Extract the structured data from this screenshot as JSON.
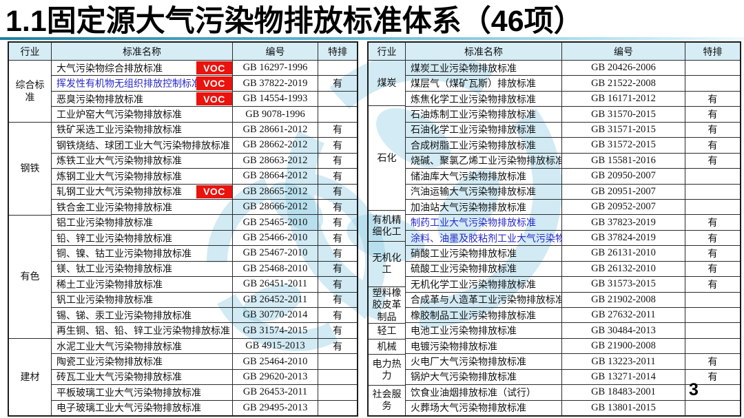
{
  "title": "1.1固定源大气污染物排放标准体系（46项）",
  "page_number": "3",
  "voc_label": "VOC",
  "columns": [
    "行业",
    "标准名称",
    "编号",
    "特排"
  ],
  "colors": {
    "voc_red": "#ea130d",
    "header_bg": "#d7edf6",
    "highlight_blue_text": "#2727c8",
    "watermark_blue": "#93cfe6",
    "title_underline_teal": "#1f7f9e"
  },
  "tables": [
    {
      "side": "left",
      "groups": [
        {
          "industry": "综合标\n准",
          "rows": [
            {
              "name": "大气污染物综合排放标准",
              "voc": true,
              "code": "GB 16297-1996",
              "special": ""
            },
            {
              "name": "挥发性有机物无组织排放控制标准",
              "voc": true,
              "blue": true,
              "code": "GB 37822-2019",
              "special": "有"
            },
            {
              "name": "恶臭污染物排放标准",
              "voc": true,
              "code": "GB 14554-1993",
              "special": ""
            },
            {
              "name": "工业炉窑大气污染物排放标准",
              "code": "GB 9078-1996",
              "special": ""
            }
          ]
        },
        {
          "industry": "钢铁",
          "rows": [
            {
              "name": "铁矿采选工业污染物排放标准",
              "code": "GB 28661-2012",
              "special": "有"
            },
            {
              "name": "钢铁烧结、球团工业大气污染物排放标准",
              "code": "GB 28662-2012",
              "special": "有"
            },
            {
              "name": "炼铁工业大气污染物排放标准",
              "code": "GB 28663-2012",
              "special": "有"
            },
            {
              "name": "炼钢工业大气污染物排放标准",
              "code": "GB 28664-2012",
              "special": "有"
            },
            {
              "name": "轧钢工业大气污染物排放标准",
              "voc": true,
              "code": "GB 28665-2012",
              "special": "有"
            },
            {
              "name": "铁合金工业污染物排放标准",
              "code": "GB 28666-2012",
              "special": "有"
            }
          ]
        },
        {
          "industry": "有色",
          "rows": [
            {
              "name": "铝工业污染物排放标准",
              "code": "GB 25465-2010",
              "special": "有"
            },
            {
              "name": "铅、锌工业污染物排放标准",
              "code": "GB 25466-2010",
              "special": "有"
            },
            {
              "name": "铜、镍、钴工业污染物排放标准",
              "code": "GB 25467-2010",
              "special": "有"
            },
            {
              "name": "镁、钛工业污染物排放标准",
              "code": "GB 25468-2010",
              "special": "有"
            },
            {
              "name": "稀土工业污染物排放标准",
              "code": "GB 26451-2011",
              "special": "有"
            },
            {
              "name": "钒工业污染物排放标准",
              "code": "GB 26452-2011",
              "special": "有"
            },
            {
              "name": "锡、锑、汞工业污染物排放标准",
              "code": "GB 30770-2014",
              "special": "有"
            },
            {
              "name": "再生铜、铝、铅、锌工业污染物排放标准",
              "code": "GB 31574-2015",
              "special": "有"
            }
          ]
        },
        {
          "industry": "建材",
          "rows": [
            {
              "name": "水泥工业大气污染物排放标准",
              "code": "GB 4915-2013",
              "special": "有"
            },
            {
              "name": "陶瓷工业污染物排放标准",
              "code": "GB 25464-2010",
              "special": ""
            },
            {
              "name": "砖瓦工业大气污染物排放标准",
              "code": "GB 29620-2013",
              "special": ""
            },
            {
              "name": "平板玻璃工业大气污染物排放标准",
              "code": "GB 26453-2011",
              "special": ""
            },
            {
              "name": "电子玻璃工业大气污染物排放标准",
              "code": "GB 29495-2013",
              "special": ""
            }
          ]
        }
      ]
    },
    {
      "side": "right",
      "groups": [
        {
          "industry": "煤炭",
          "rows": [
            {
              "name": "煤炭工业污染物排放标准",
              "code": "GB 20426-2006",
              "special": ""
            },
            {
              "name": "煤层气（煤矿瓦斯）排放标准",
              "code": "GB 21522-2008",
              "special": ""
            },
            {
              "name": "炼焦化学工业污染物排放标准",
              "voc": true,
              "code": "GB 16171-2012",
              "special": "有"
            }
          ]
        },
        {
          "industry": "石化",
          "rows": [
            {
              "name": "石油炼制工业污染物排放标准",
              "voc": true,
              "code": "GB 31570-2015",
              "special": "有"
            },
            {
              "name": "石油化学工业污染物排放标准",
              "voc": true,
              "code": "GB 31571-2015",
              "special": "有"
            },
            {
              "name": "合成树脂工业污染物排放标准",
              "voc": true,
              "code": "GB 31572-2015",
              "special": "有"
            },
            {
              "name": "烧碱、聚氯乙烯工业污染物排放标准",
              "voc": true,
              "code": "GB 15581-2016",
              "special": "有"
            },
            {
              "name": "储油库大气污染物排放标准",
              "voc": true,
              "code": "GB 20950-2007",
              "special": ""
            },
            {
              "name": "汽油运输大气污染物排放标准",
              "voc": true,
              "code": "GB 20951-2007",
              "special": ""
            },
            {
              "name": "加油站大气污染物排放标准",
              "voc": true,
              "code": "GB 20952-2007",
              "special": ""
            }
          ]
        },
        {
          "industry": "有机精\n细化工",
          "rows": [
            {
              "name": "制药工业大气污染物排放标准",
              "voc": true,
              "blue": true,
              "code": "GB 37823-2019",
              "special": "有"
            },
            {
              "name": "涂料、油墨及胶粘剂工业大气污染物排放",
              "voc": true,
              "blue": true,
              "code": "GB 37824-2019",
              "special": "有"
            }
          ]
        },
        {
          "industry": "无机化\n工",
          "rows": [
            {
              "name": "硝酸工业污染物排放标准",
              "code": "GB 26131-2010",
              "special": "有"
            },
            {
              "name": "硫酸工业污染物排放标准",
              "code": "GB 26132-2010",
              "special": "有"
            },
            {
              "name": "无机化学工业污染物排放标准",
              "code": "GB 31573-2015",
              "special": "有"
            }
          ]
        },
        {
          "industry": "塑料橡\n胶皮革\n制品",
          "rows": [
            {
              "name": "合成革与人造革工业污染物排放标准",
              "voc": true,
              "code": "GB 21902-2008",
              "special": ""
            },
            {
              "name": "橡胶制品工业污染物排放标准",
              "voc": true,
              "code": "GB 27632-2011",
              "special": ""
            }
          ]
        },
        {
          "industry": "轻工",
          "rows": [
            {
              "name": "电池工业污染物排放标准",
              "voc": true,
              "code": "GB 30484-2013",
              "special": ""
            }
          ]
        },
        {
          "industry": "机械",
          "rows": [
            {
              "name": "电镀污染物排放标准",
              "code": "GB 21900-2008",
              "special": ""
            }
          ]
        },
        {
          "industry": "电力热\n力",
          "rows": [
            {
              "name": "火电厂大气污染物排放标准",
              "code": "GB 13223-2011",
              "special": "有"
            },
            {
              "name": "锅炉大气污染物排放标准",
              "code": "GB 13271-2014",
              "special": "有"
            }
          ]
        },
        {
          "industry": "社会服\n务",
          "rows": [
            {
              "name": "饮食业油烟排放标准（试行）",
              "code": "GB 18483-2001",
              "special": ""
            },
            {
              "name": "火葬场大气污染物排放标准",
              "code": "GB 13801-2015",
              "special": ""
            }
          ]
        }
      ]
    }
  ]
}
